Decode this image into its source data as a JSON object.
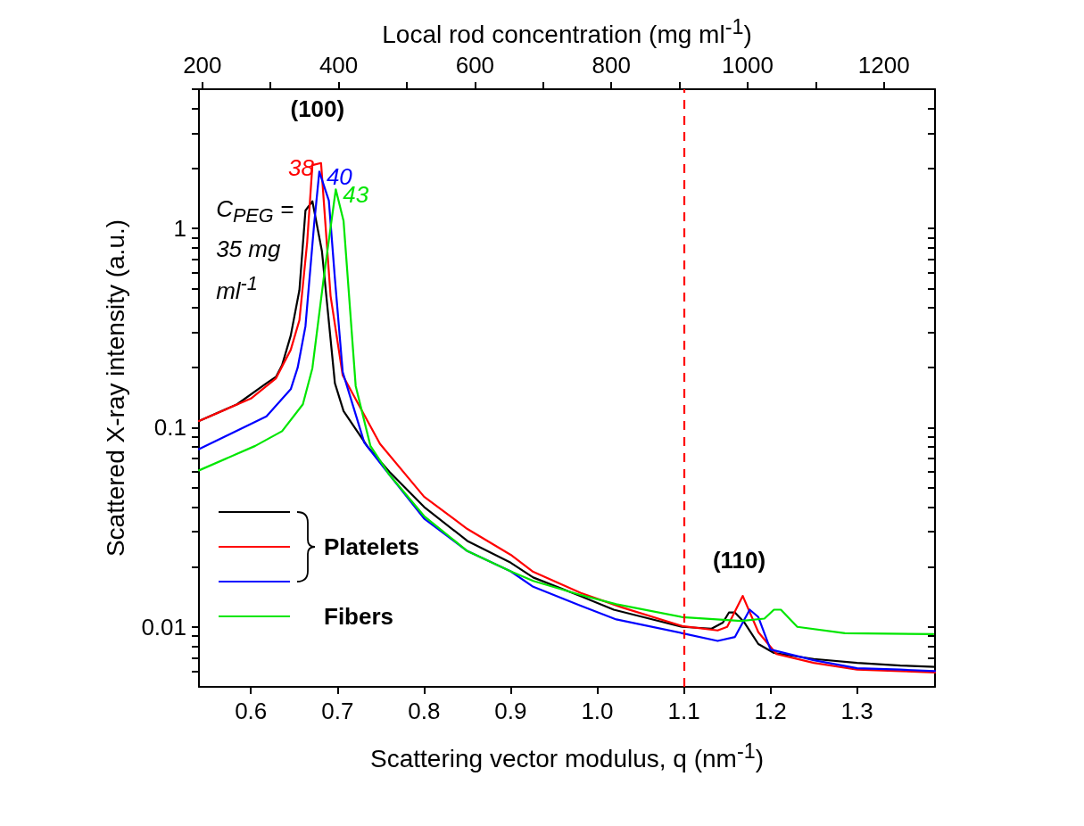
{
  "chart_data": {
    "type": "line",
    "xlabel": "Scattering vector modulus, q (nm$^{-1}$)",
    "x2label": "Local rod concentration (mg ml$^{-1}$)",
    "ylabel": "Scattered X-ray intensity (a.u.)",
    "xlim": [
      0.54,
      1.39
    ],
    "xticks": [
      0.6,
      0.7,
      0.8,
      0.9,
      {
        "value": 1.0,
        "label": "1.0"
      },
      1.1,
      1.2,
      1.3
    ],
    "x2lim": [
      195,
      1275
    ],
    "x2ticks": [
      200,
      {
        "value": 300,
        "label": null
      },
      400,
      {
        "value": 500,
        "label": null
      },
      600,
      {
        "value": 700,
        "label": null
      },
      800,
      {
        "value": 900,
        "label": null
      },
      1000,
      {
        "value": 1100,
        "label": null
      },
      1200
    ],
    "ylim": [
      0.005,
      5
    ],
    "yticks": [
      {
        "value": 0.006,
        "label": null
      },
      {
        "value": 0.007,
        "label": null
      },
      {
        "value": 0.008,
        "label": null
      },
      {
        "value": 0.009,
        "label": null
      },
      0.01,
      {
        "value": 0.02,
        "label": null
      },
      {
        "value": 0.03,
        "label": null
      },
      {
        "value": 0.04,
        "label": null
      },
      {
        "value": 0.05,
        "label": null
      },
      {
        "value": 0.06,
        "label": null
      },
      {
        "value": 0.07,
        "label": null
      },
      {
        "value": 0.08,
        "label": null
      },
      {
        "value": 0.09,
        "label": null
      },
      0.1,
      {
        "value": 0.2,
        "label": null
      },
      {
        "value": 0.3,
        "label": null
      },
      {
        "value": 0.4,
        "label": null
      },
      {
        "value": 0.5,
        "label": null
      },
      {
        "value": 0.6,
        "label": null
      },
      {
        "value": 0.7,
        "label": null
      },
      {
        "value": 0.8,
        "label": null
      },
      {
        "value": 0.9,
        "label": null
      },
      1,
      {
        "value": 2,
        "label": null
      },
      {
        "value": 3,
        "label": null
      },
      {
        "value": 4,
        "label": null
      },
      {
        "value": 5,
        "label": null
      }
    ],
    "log": "y",
    "grid": false,
    "marker": "none",
    "line_style": "solid",
    "series": [
      {
        "name": "C$_{PEG}$ = 35 mg ml$^{-1}$",
        "color": "#000000",
        "x": [
          0.54,
          0.584,
          0.618,
          0.629,
          0.636,
          0.646,
          0.656,
          0.663,
          0.671,
          0.682,
          0.697,
          0.707,
          0.735,
          0.76,
          0.8,
          0.85,
          0.9,
          0.926,
          0.98,
          1.019,
          1.06,
          1.098,
          1.132,
          1.145,
          1.152,
          1.159,
          1.17,
          1.186,
          1.204,
          1.25,
          1.3,
          1.35,
          1.39
        ],
        "values": [
          0.108,
          0.131,
          0.167,
          0.18,
          0.206,
          0.29,
          0.49,
          1.23,
          1.37,
          0.77,
          0.167,
          0.121,
          0.08,
          0.06,
          0.04,
          0.027,
          0.021,
          0.0177,
          0.0143,
          0.0122,
          0.011,
          0.01,
          0.0098,
          0.0105,
          0.0118,
          0.0118,
          0.0105,
          0.0082,
          0.0074,
          0.0069,
          0.0066,
          0.0064,
          0.0063
        ]
      },
      {
        "name": "38",
        "color": "#ff0000",
        "x": [
          0.54,
          0.6,
          0.629,
          0.646,
          0.656,
          0.665,
          0.671,
          0.681,
          0.692,
          0.706,
          0.749,
          0.8,
          0.85,
          0.9,
          0.926,
          0.981,
          1.029,
          1.098,
          1.139,
          1.15,
          1.168,
          1.186,
          1.207,
          1.25,
          1.3,
          1.35,
          1.39
        ],
        "values": [
          0.108,
          0.14,
          0.177,
          0.246,
          0.346,
          0.855,
          2.08,
          2.13,
          0.458,
          0.183,
          0.083,
          0.045,
          0.031,
          0.023,
          0.0189,
          0.0148,
          0.0125,
          0.0101,
          0.0096,
          0.01,
          0.0143,
          0.0094,
          0.0073,
          0.0066,
          0.0061,
          0.006,
          0.0059
        ]
      },
      {
        "name": "40",
        "color": "#0000ff",
        "x": [
          0.54,
          0.618,
          0.646,
          0.654,
          0.663,
          0.673,
          0.679,
          0.69,
          0.697,
          0.706,
          0.731,
          0.76,
          0.8,
          0.85,
          0.9,
          0.926,
          0.98,
          1.022,
          1.098,
          1.139,
          1.159,
          1.176,
          1.186,
          1.2,
          1.25,
          1.3,
          1.35,
          1.39
        ],
        "values": [
          0.078,
          0.114,
          0.156,
          0.2,
          0.323,
          1.05,
          1.93,
          1.38,
          0.56,
          0.19,
          0.084,
          0.058,
          0.035,
          0.024,
          0.019,
          0.0159,
          0.0128,
          0.0109,
          0.0093,
          0.0085,
          0.0089,
          0.0122,
          0.0112,
          0.0077,
          0.0068,
          0.0062,
          0.0061,
          0.006
        ]
      },
      {
        "name": "43",
        "color": "#00e600",
        "x": [
          0.54,
          0.605,
          0.636,
          0.66,
          0.671,
          0.684,
          0.692,
          0.698,
          0.707,
          0.721,
          0.738,
          0.76,
          0.8,
          0.85,
          0.9,
          0.926,
          0.98,
          1.022,
          1.098,
          1.166,
          1.193,
          1.204,
          1.212,
          1.231,
          1.286,
          1.388
        ],
        "values": [
          0.061,
          0.081,
          0.096,
          0.131,
          0.199,
          0.56,
          1.01,
          1.57,
          1.09,
          0.162,
          0.081,
          0.058,
          0.036,
          0.024,
          0.019,
          0.017,
          0.0145,
          0.013,
          0.0112,
          0.0107,
          0.011,
          0.0122,
          0.0122,
          0.01,
          0.0093,
          0.0092
        ]
      }
    ],
    "ref_lines": [
      {
        "axis": "x",
        "value": 1.1,
        "color": "#ff0000",
        "line_style": "dashed"
      }
    ],
    "annotations": [
      "Platelets",
      "Fibers",
      "(100)",
      "(110)"
    ]
  }
}
